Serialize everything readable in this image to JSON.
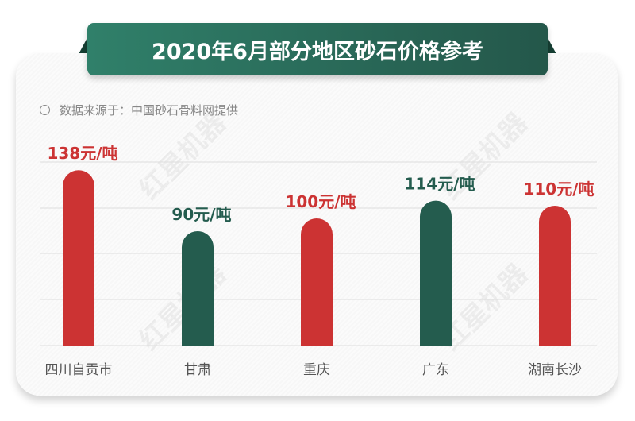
{
  "title": "2020年6月部分地区砂石价格参考",
  "source": "数据来源于：中国砂石骨料网提供",
  "watermark": "红星机器 HONGXING MACHINERY",
  "colors": {
    "red": "#cc3333",
    "green": "#245c4e",
    "title_bg": "#2b6e5b"
  },
  "chart_data": {
    "type": "bar",
    "categories": [
      "四川自贡市",
      "甘肃",
      "重庆",
      "广东",
      "湖南长沙"
    ],
    "values": [
      138,
      90,
      100,
      114,
      110
    ],
    "value_labels": [
      "138元/吨",
      "90元/吨",
      "100元/吨",
      "114元/吨",
      "110元/吨"
    ],
    "bar_colors": [
      "#cc3333",
      "#245c4e",
      "#cc3333",
      "#245c4e",
      "#cc3333"
    ],
    "unit": "元/吨",
    "grid": true,
    "ylim": [
      0,
      145
    ]
  }
}
